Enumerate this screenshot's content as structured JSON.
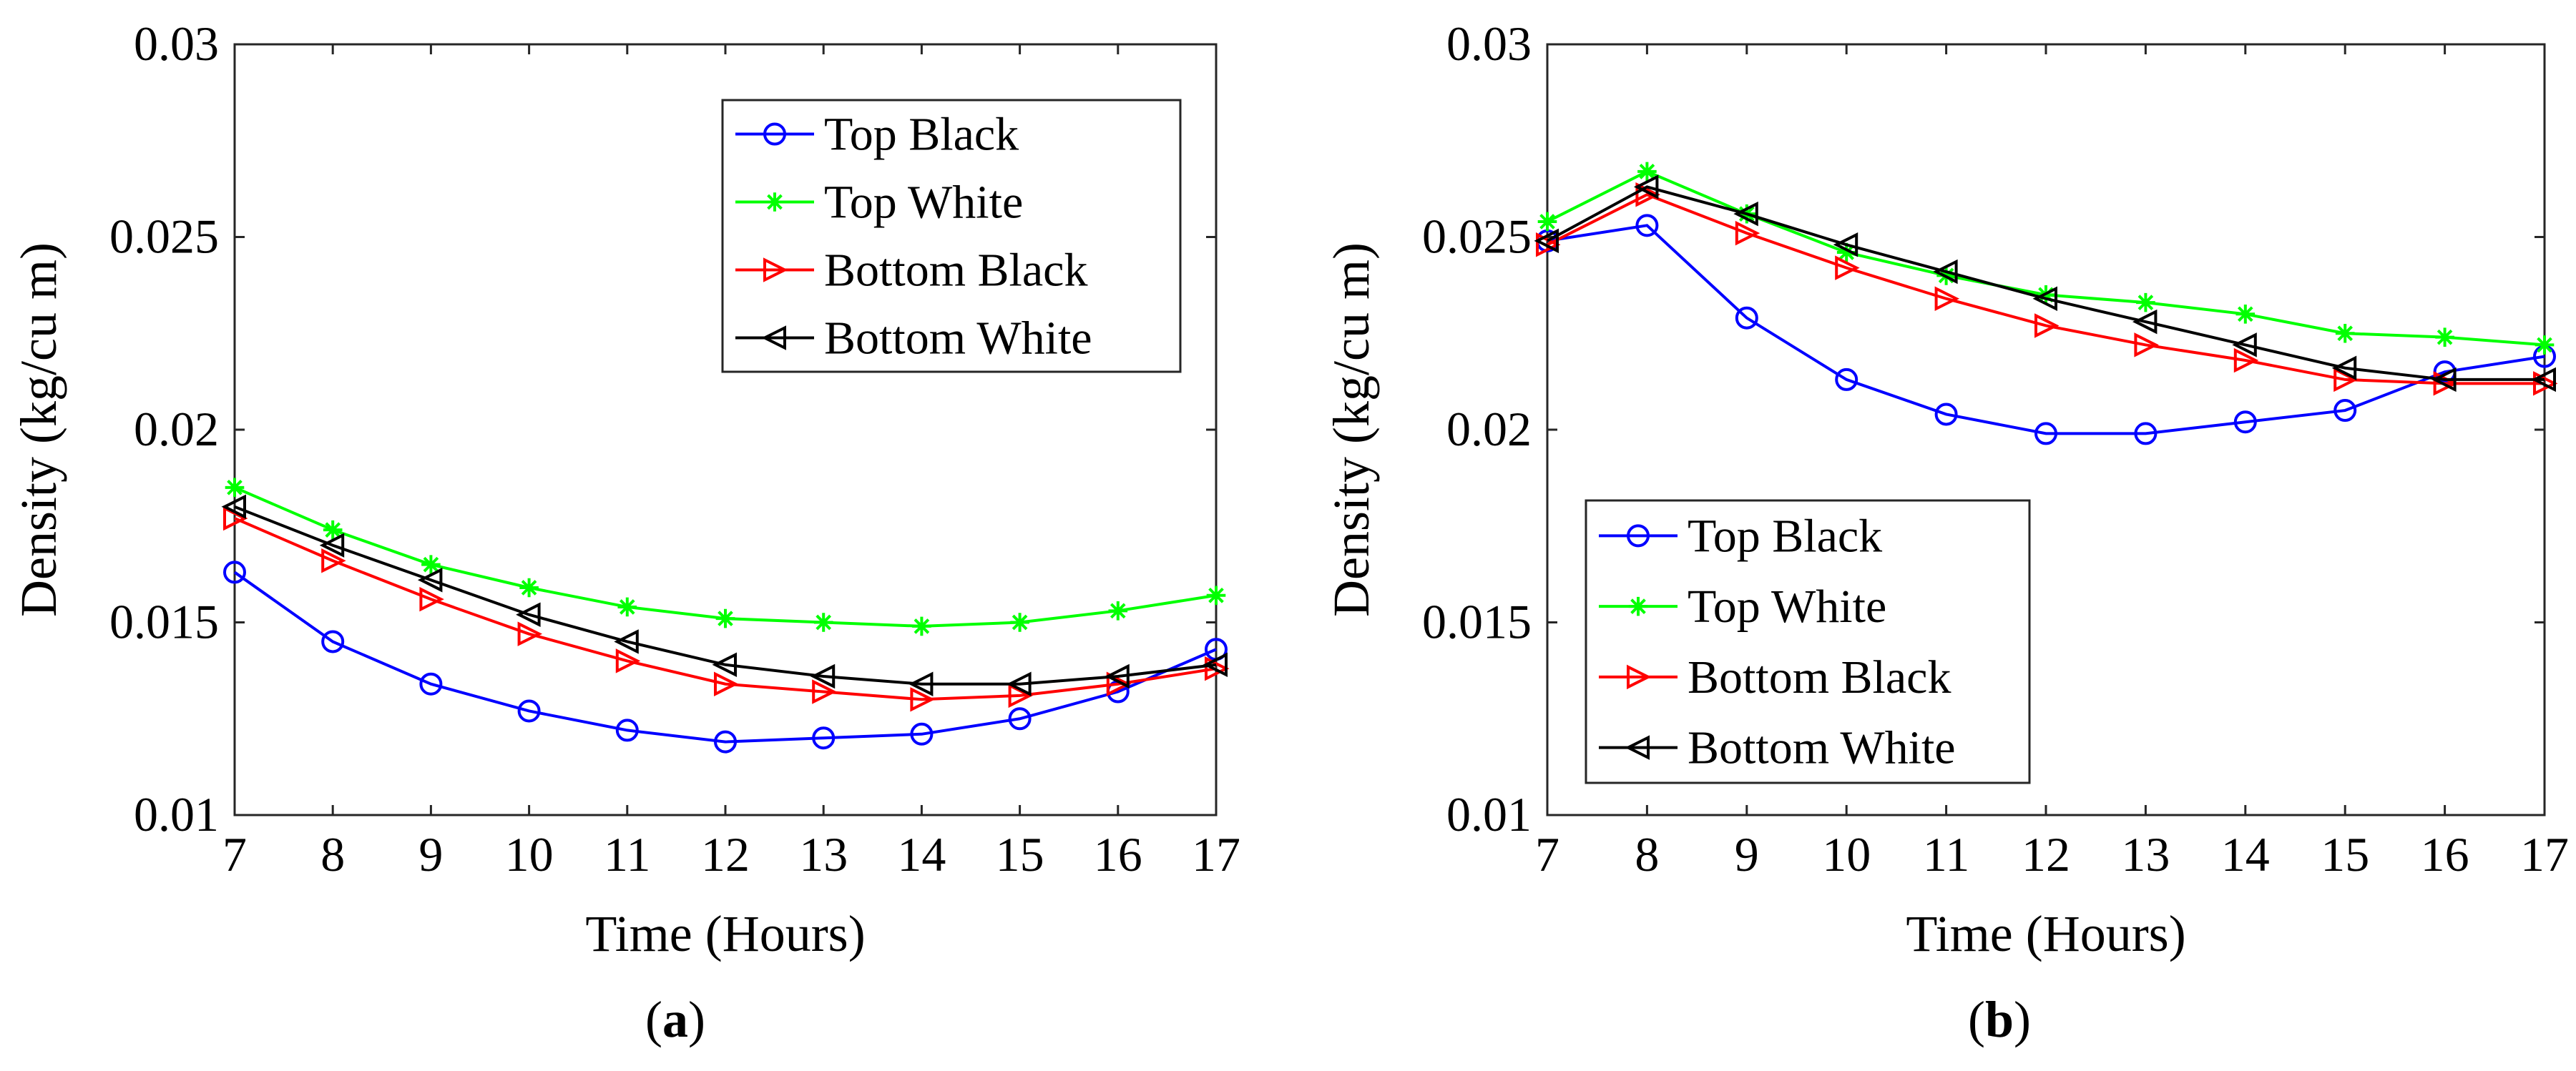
{
  "chart_data": [
    {
      "type": "line",
      "panel_label": "a",
      "xlabel": "Time (Hours)",
      "ylabel": "Density (kg/cu m)",
      "xlim": [
        7,
        17
      ],
      "ylim": [
        0.01,
        0.03
      ],
      "xticks": [
        7,
        8,
        9,
        10,
        11,
        12,
        13,
        14,
        15,
        16,
        17
      ],
      "yticks": [
        0.01,
        0.015,
        0.02,
        0.025,
        0.03
      ],
      "ytick_labels": [
        "0.01",
        "0.015",
        "0.02",
        "0.025",
        "0.03"
      ],
      "legend_position": "top-right",
      "x": [
        7,
        8,
        9,
        10,
        11,
        12,
        13,
        14,
        15,
        16,
        17
      ],
      "series": [
        {
          "name": "Top Black",
          "color": "#0000ff",
          "marker": "circle",
          "values": [
            0.0163,
            0.0145,
            0.0134,
            0.0127,
            0.0122,
            0.0119,
            0.012,
            0.0121,
            0.0125,
            0.0132,
            0.0143
          ]
        },
        {
          "name": "Top White",
          "color": "#00ff00",
          "marker": "star",
          "values": [
            0.0185,
            0.0174,
            0.0165,
            0.0159,
            0.0154,
            0.0151,
            0.015,
            0.0149,
            0.015,
            0.0153,
            0.0157
          ]
        },
        {
          "name": "Bottom Black",
          "color": "#ff0000",
          "marker": "triangle-right",
          "values": [
            0.0177,
            0.0166,
            0.0156,
            0.0147,
            0.014,
            0.0134,
            0.0132,
            0.013,
            0.0131,
            0.0134,
            0.0138
          ]
        },
        {
          "name": "Bottom White",
          "color": "#000000",
          "marker": "triangle-left",
          "values": [
            0.018,
            0.017,
            0.0161,
            0.0152,
            0.0145,
            0.0139,
            0.0136,
            0.0134,
            0.0134,
            0.0136,
            0.0139
          ]
        }
      ]
    },
    {
      "type": "line",
      "panel_label": "b",
      "xlabel": "Time (Hours)",
      "ylabel": "Density (kg/cu m)",
      "xlim": [
        7,
        17
      ],
      "ylim": [
        0.01,
        0.03
      ],
      "xticks": [
        7,
        8,
        9,
        10,
        11,
        12,
        13,
        14,
        15,
        16,
        17
      ],
      "yticks": [
        0.01,
        0.015,
        0.02,
        0.025,
        0.03
      ],
      "ytick_labels": [
        "0.01",
        "0.015",
        "0.02",
        "0.025",
        "0.03"
      ],
      "legend_position": "bottom-left",
      "x": [
        7,
        8,
        9,
        10,
        11,
        12,
        13,
        14,
        15,
        16,
        17
      ],
      "series": [
        {
          "name": "Top Black",
          "color": "#0000ff",
          "marker": "circle",
          "values": [
            0.0249,
            0.0253,
            0.0229,
            0.0213,
            0.0204,
            0.0199,
            0.0199,
            0.0202,
            0.0205,
            0.0215,
            0.0219
          ]
        },
        {
          "name": "Top White",
          "color": "#00ff00",
          "marker": "star",
          "values": [
            0.0254,
            0.0267,
            0.0256,
            0.0246,
            0.024,
            0.0235,
            0.0233,
            0.023,
            0.0225,
            0.0224,
            0.0222
          ]
        },
        {
          "name": "Bottom Black",
          "color": "#ff0000",
          "marker": "triangle-right",
          "values": [
            0.0248,
            0.0261,
            0.0251,
            0.0242,
            0.0234,
            0.0227,
            0.0222,
            0.0218,
            0.0213,
            0.0212,
            0.0212
          ]
        },
        {
          "name": "Bottom White",
          "color": "#000000",
          "marker": "triangle-left",
          "values": [
            0.0249,
            0.0263,
            0.0256,
            0.0248,
            0.0241,
            0.0234,
            0.0228,
            0.0222,
            0.0216,
            0.0213,
            0.0213
          ]
        }
      ]
    }
  ]
}
